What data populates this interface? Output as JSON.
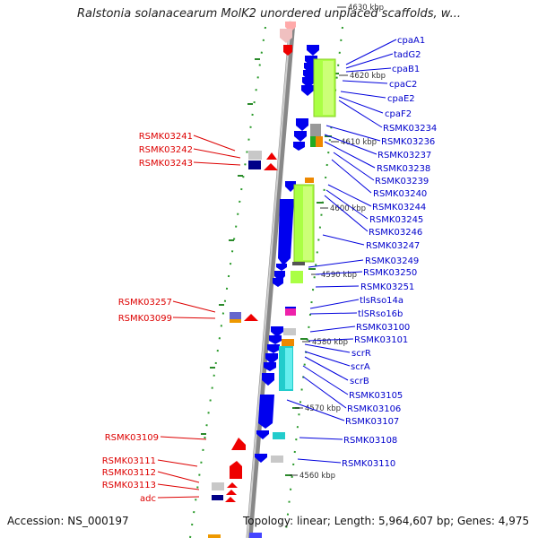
{
  "title": "Ralstonia solanacearum MolK2 unordered unplaced scaffolds, w...",
  "footer": {
    "accession": "Accession: NS_000197",
    "topology": "Topology: linear; Length: 5,964,607 bp; Genes: 4,975"
  },
  "colors": {
    "forward": "#ee0000",
    "reverse": "#0000dd",
    "backbone": "#999999"
  },
  "kbp_marks": [
    {
      "label": "4630 kbp"
    },
    {
      "label": "4620 kbp"
    },
    {
      "label": "4610 kbp"
    },
    {
      "label": "4600 kbp"
    },
    {
      "label": "4590 kbp"
    },
    {
      "label": "4580 kbp"
    },
    {
      "label": "4570 kbp"
    },
    {
      "label": "4560 kbp"
    }
  ],
  "left_labels": [
    {
      "text": "RSMK03241"
    },
    {
      "text": "RSMK03242"
    },
    {
      "text": "RSMK03243"
    },
    {
      "text": "RSMK03257"
    },
    {
      "text": "RSMK03099"
    },
    {
      "text": "RSMK03109"
    },
    {
      "text": "RSMK03111"
    },
    {
      "text": "RSMK03112"
    },
    {
      "text": "RSMK03113"
    },
    {
      "text": "adc"
    }
  ],
  "right_labels": [
    {
      "text": "cpaA1"
    },
    {
      "text": "tadG2"
    },
    {
      "text": "cpaB1"
    },
    {
      "text": "cpaC2"
    },
    {
      "text": "cpaE2"
    },
    {
      "text": "cpaF2"
    },
    {
      "text": "RSMK03234"
    },
    {
      "text": "RSMK03236"
    },
    {
      "text": "RSMK03237"
    },
    {
      "text": "RSMK03238"
    },
    {
      "text": "RSMK03239"
    },
    {
      "text": "RSMK03240"
    },
    {
      "text": "RSMK03244"
    },
    {
      "text": "RSMK03245"
    },
    {
      "text": "RSMK03246"
    },
    {
      "text": "RSMK03247"
    },
    {
      "text": "RSMK03249"
    },
    {
      "text": "RSMK03250"
    },
    {
      "text": "RSMK03251"
    },
    {
      "text": "tlsRso14a"
    },
    {
      "text": "tlSRso16b"
    },
    {
      "text": "RSMK03100"
    },
    {
      "text": "RSMK03101"
    },
    {
      "text": "scrR"
    },
    {
      "text": "scrA"
    },
    {
      "text": "scrB"
    },
    {
      "text": "RSMK03105"
    },
    {
      "text": "RSMK03106"
    },
    {
      "text": "RSMK03107"
    },
    {
      "text": "RSMK03108"
    },
    {
      "text": "RSMK03110"
    }
  ]
}
